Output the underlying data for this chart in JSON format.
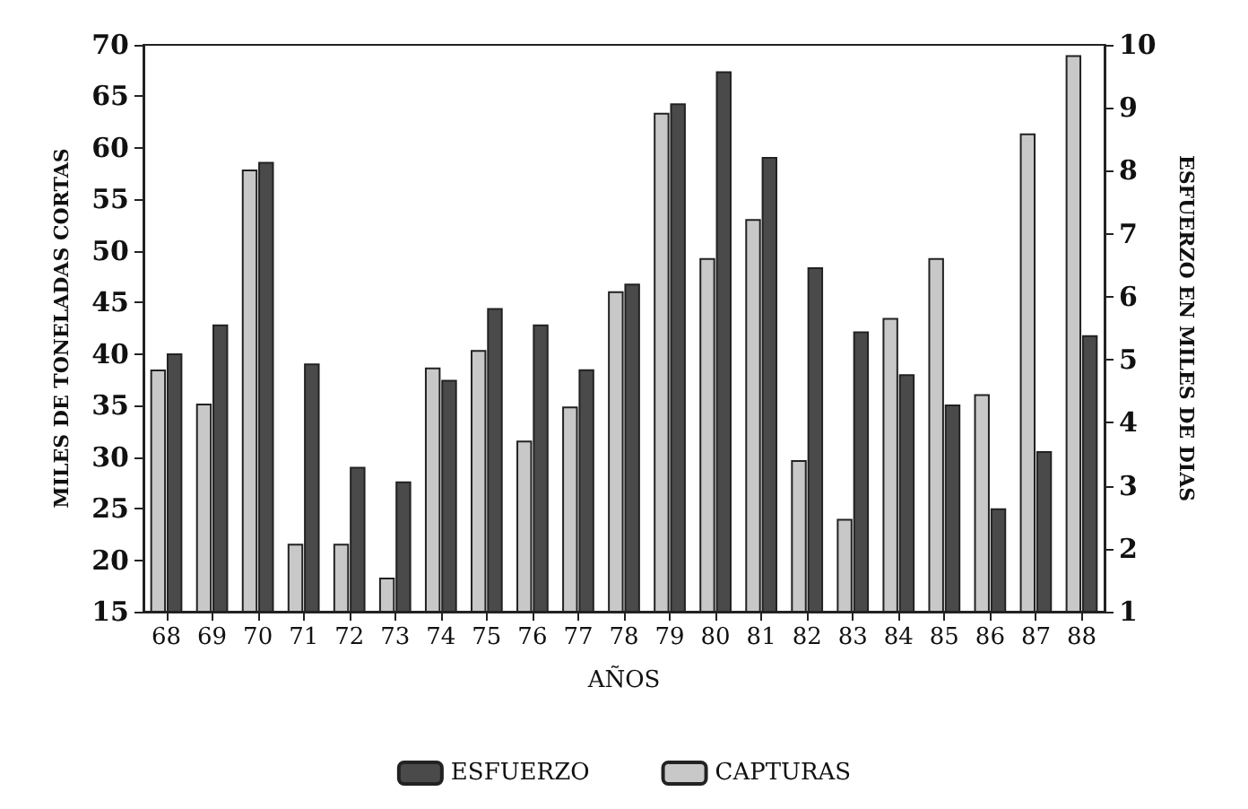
{
  "chart_data": {
    "type": "bar",
    "xlabel": "AÑOS",
    "ylabel": "MILES DE TONELADAS CORTAS",
    "y2label": "ESFUERZO EN MILES DE DIAS",
    "categories": [
      "68",
      "69",
      "70",
      "71",
      "72",
      "73",
      "74",
      "75",
      "76",
      "77",
      "78",
      "79",
      "80",
      "81",
      "82",
      "83",
      "84",
      "85",
      "86",
      "87",
      "88"
    ],
    "series": [
      {
        "name": "CAPTURAS",
        "color": "#c8c8c8",
        "values": [
          38.5,
          35.2,
          57.9,
          21.6,
          21.6,
          18.3,
          38.7,
          40.4,
          31.6,
          34.9,
          46.1,
          63.4,
          49.3,
          53.1,
          29.7,
          24.0,
          43.5,
          49.3,
          36.1,
          61.4,
          69.0
        ]
      },
      {
        "name": "ESFUERZO",
        "color": "#4a4a4a",
        "axis": "y2",
        "values": [
          5.1,
          5.56,
          8.14,
          4.94,
          3.3,
          3.07,
          4.68,
          5.82,
          5.56,
          4.85,
          6.21,
          9.07,
          9.58,
          8.22,
          6.47,
          5.45,
          4.77,
          4.29,
          2.64,
          3.55,
          5.39
        ]
      }
    ],
    "ylim": [
      15,
      70
    ],
    "yticks": [
      15,
      20,
      25,
      30,
      35,
      40,
      45,
      50,
      55,
      60,
      65,
      70
    ],
    "y2lim": [
      1,
      10
    ],
    "y2ticks": [
      1,
      2,
      3,
      4,
      5,
      6,
      7,
      8,
      9,
      10
    ],
    "grid": false,
    "legend": "bottom"
  }
}
